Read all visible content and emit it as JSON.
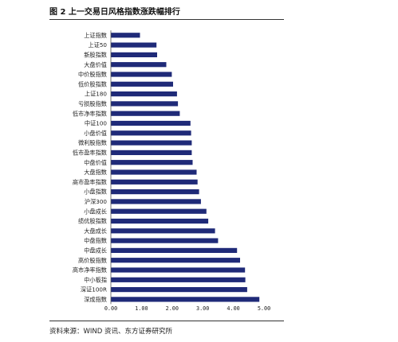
{
  "title": "图 2  上一交易日风格指数涨跌幅排行",
  "source": "资料来源：WIND 资讯、东方证券研究所",
  "chart_data": {
    "type": "bar",
    "orientation": "horizontal",
    "title": "图 2  上一交易日风格指数涨跌幅排行",
    "xlabel": "",
    "ylabel": "",
    "xlim": [
      0,
      5
    ],
    "ticks": [
      "0.00",
      "1.00",
      "2.00",
      "3.00",
      "4.00",
      "5.00"
    ],
    "grid": false,
    "bar_color": "#1f2a78",
    "categories": [
      "上证指数",
      "上证50",
      "新股指数",
      "大盘价值",
      "中价股指数",
      "低价股指数",
      "上证180",
      "亏损股指数",
      "低市净率指数",
      "中证100",
      "小盘价值",
      "微利股指数",
      "低市盈率指数",
      "中盘价值",
      "大盘指数",
      "高市盈率指数",
      "小盘指数",
      "沪深300",
      "小盘成长",
      "绩优股指数",
      "大盘成长",
      "中盘指数",
      "中盘成长",
      "高价股指数",
      "高市净率指数",
      "中小板指",
      "深证100R",
      "深成指数"
    ],
    "values": [
      0.95,
      1.49,
      1.51,
      1.81,
      1.99,
      2.03,
      2.16,
      2.19,
      2.25,
      2.6,
      2.62,
      2.64,
      2.64,
      2.67,
      2.8,
      2.83,
      2.88,
      2.94,
      3.12,
      3.18,
      3.4,
      3.5,
      4.12,
      4.22,
      4.38,
      4.39,
      4.45,
      4.85
    ]
  }
}
